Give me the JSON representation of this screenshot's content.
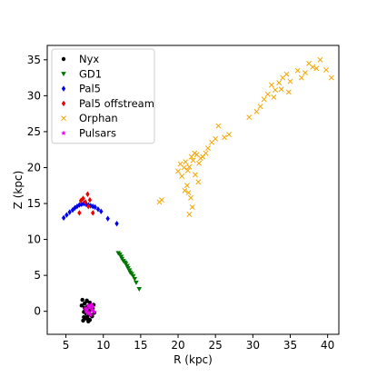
{
  "chart_data": {
    "type": "scatter",
    "xlabel": "R (kpc)",
    "ylabel": "Z (kpc)",
    "xlim": [
      2.5,
      41.5
    ],
    "ylim": [
      -3.2,
      37
    ],
    "xticks": [
      5,
      10,
      15,
      20,
      25,
      30,
      35,
      40
    ],
    "yticks": [
      0,
      5,
      10,
      15,
      20,
      25,
      30,
      35
    ],
    "grid": false,
    "legend": "upper-left",
    "series": [
      {
        "name": "Nyx",
        "marker": "circle",
        "color": "#000000",
        "x": [
          7.2,
          7.5,
          7.8,
          8.0,
          8.3,
          7.6,
          7.9,
          8.1,
          8.4,
          7.4,
          7.7,
          8.2,
          8.6,
          7.3,
          8.0,
          8.5,
          7.8,
          7.5,
          8.8,
          7.9,
          8.3,
          7.1,
          8.7,
          7.6,
          8.2,
          7.4,
          8.0,
          7.9,
          8.1,
          7.7,
          8.4,
          7.5,
          7.8,
          8.0,
          8.2
        ],
        "y": [
          1.6,
          1.1,
          1.4,
          0.6,
          0.9,
          0.2,
          -0.3,
          0.1,
          -0.5,
          -0.8,
          -1.0,
          -1.2,
          0.4,
          -1.3,
          -1.1,
          -0.7,
          0.0,
          0.5,
          -0.2,
          -0.6,
          0.3,
          0.8,
          0.9,
          -0.9,
          1.2,
          -0.1,
          -1.4,
          0.7,
          -0.4,
          -0.3,
          0.2,
          0.0,
          1.5,
          -1.1,
          0.5
        ]
      },
      {
        "name": "GD1",
        "marker": "triangle-down",
        "color": "#007700",
        "x": [
          12.0,
          12.2,
          12.4,
          12.5,
          12.7,
          12.9,
          13.0,
          13.2,
          13.3,
          13.5,
          13.6,
          13.8,
          14.0,
          14.2,
          14.4,
          14.8
        ],
        "y": [
          8.1,
          7.9,
          7.6,
          7.3,
          7.0,
          6.8,
          6.6,
          6.3,
          6.0,
          5.7,
          5.4,
          5.2,
          4.9,
          4.5,
          4.0,
          3.1
        ]
      },
      {
        "name": "Pal5",
        "marker": "diamond",
        "color": "#0000ee",
        "x": [
          4.7,
          5.1,
          5.5,
          5.9,
          6.2,
          6.5,
          6.8,
          7.1,
          7.4,
          7.7,
          8.0,
          8.3,
          8.6,
          8.9,
          9.3,
          9.7,
          10.6,
          11.8
        ],
        "y": [
          13.0,
          13.4,
          13.8,
          14.1,
          14.4,
          14.6,
          14.8,
          14.9,
          15.0,
          14.9,
          14.8,
          14.7,
          14.6,
          14.5,
          14.2,
          13.9,
          12.9,
          12.2
        ]
      },
      {
        "name": "Pal5 offstream",
        "marker": "diamond",
        "color": "#ee0000",
        "x": [
          6.8,
          7.3,
          7.6,
          7.9,
          8.2,
          8.6,
          7.0,
          8.0
        ],
        "y": [
          13.7,
          15.7,
          15.2,
          16.3,
          15.5,
          13.7,
          15.4,
          14.6
        ]
      },
      {
        "name": "Orphan",
        "marker": "x",
        "color": "#f5a500",
        "x": [
          17.5,
          17.8,
          20.0,
          20.3,
          20.5,
          20.8,
          21.0,
          21.3,
          21.5,
          21.8,
          22.0,
          22.2,
          22.5,
          22.8,
          23.0,
          22.3,
          22.7,
          23.3,
          23.7,
          24.0,
          24.5,
          25.0,
          25.4,
          26.2,
          26.8,
          21.2,
          21.4,
          21.7,
          21.9,
          21.5,
          20.9,
          29.5,
          30.5,
          31.0,
          31.5,
          32.0,
          32.5,
          33.0,
          33.5,
          34.0,
          34.5,
          35.0,
          36.0,
          36.5,
          37.0,
          37.5,
          38.0,
          38.5,
          39.0,
          39.8,
          40.5,
          32.8,
          33.8,
          34.8
        ],
        "y": [
          15.2,
          15.5,
          19.5,
          20.5,
          18.8,
          20.0,
          20.8,
          19.6,
          20.1,
          21.5,
          21.0,
          22.0,
          21.8,
          20.6,
          21.3,
          19.0,
          18.0,
          21.5,
          22.0,
          22.7,
          23.5,
          24.0,
          25.8,
          24.2,
          24.6,
          17.5,
          16.5,
          15.8,
          14.5,
          13.5,
          16.8,
          27.0,
          27.8,
          28.5,
          29.5,
          30.2,
          31.5,
          30.8,
          31.8,
          32.5,
          33.0,
          32.0,
          33.5,
          32.5,
          33.2,
          34.5,
          34.0,
          33.8,
          35.0,
          33.6,
          32.5,
          29.8,
          30.9,
          30.5
        ]
      },
      {
        "name": "Pulsars",
        "marker": "star",
        "color": "#ee00ee",
        "x": [
          7.6,
          7.9,
          8.2,
          8.5,
          8.8,
          8.0,
          8.3,
          7.7,
          8.6,
          8.1,
          8.4,
          7.8
        ],
        "y": [
          0.4,
          -0.3,
          0.5,
          0.2,
          -0.1,
          0.8,
          -0.5,
          0.0,
          0.6,
          -0.2,
          0.9,
          0.3
        ]
      }
    ]
  }
}
